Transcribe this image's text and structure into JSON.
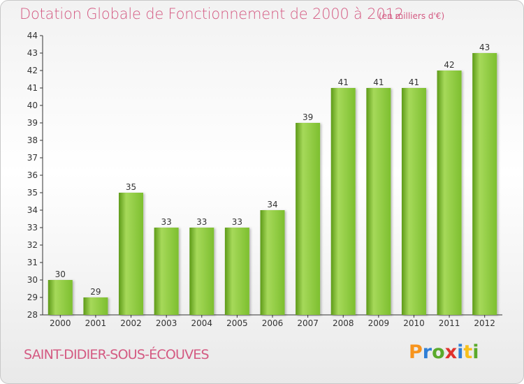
{
  "chart_data": {
    "type": "bar",
    "title": "Dotation Globale de Fonctionnement de 2000 à 2012",
    "subtitle": "(en milliers d'€)",
    "categories": [
      "2000",
      "2001",
      "2002",
      "2003",
      "2004",
      "2005",
      "2006",
      "2007",
      "2008",
      "2009",
      "2010",
      "2011",
      "2012"
    ],
    "values": [
      30,
      29,
      35,
      33,
      33,
      33,
      34,
      39,
      41,
      41,
      41,
      42,
      43
    ],
    "ylim": [
      28,
      44
    ],
    "yticks": [
      28,
      29,
      30,
      31,
      32,
      33,
      34,
      35,
      36,
      37,
      38,
      39,
      40,
      41,
      42,
      43,
      44
    ],
    "xlabel": "",
    "ylabel": "",
    "grid": false,
    "bar_color": "#7dbf2f",
    "bar_color_light": "#a6d95a",
    "bar_color_dark": "#5d9a18"
  },
  "footer": {
    "commune": "SAINT-DIDIER-SOUS-ÉCOUVES",
    "logo": [
      "P",
      "r",
      "o",
      "x",
      "i",
      "t",
      "i"
    ],
    "logo_colors": [
      "#f7941d",
      "#2f7fd6",
      "#5aaa2b",
      "#e0312c",
      "#2f7fd6",
      "#f7c01d",
      "#5aaa2b"
    ]
  }
}
